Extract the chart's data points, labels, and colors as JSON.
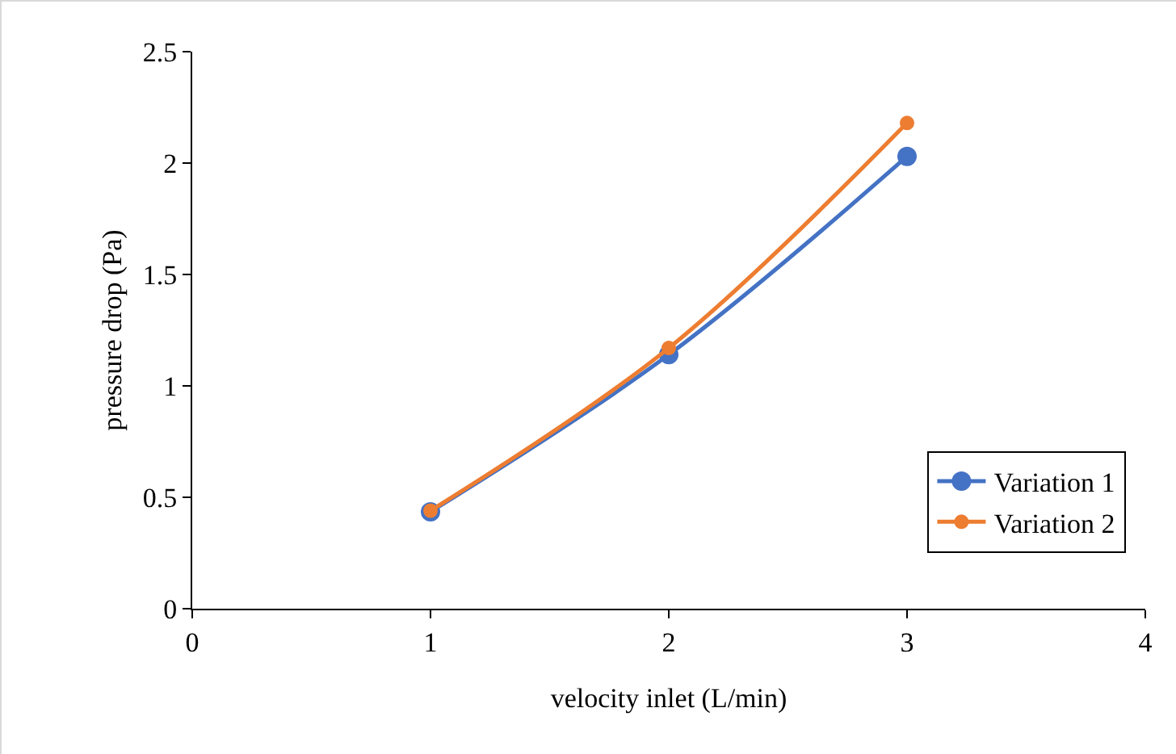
{
  "chart_data": {
    "type": "line",
    "xlabel": "velocity inlet (L/min)",
    "ylabel": "pressure drop (Pa)",
    "x": [
      1,
      2,
      3
    ],
    "series": [
      {
        "name": "Variation 1",
        "color": "#4472c4",
        "values": [
          0.435,
          1.14,
          2.03
        ]
      },
      {
        "name": "Variation 2",
        "color": "#ed7d31",
        "values": [
          0.44,
          1.17,
          2.18
        ]
      }
    ],
    "xlim": [
      0,
      4
    ],
    "xticks": [
      0,
      1,
      2,
      3,
      4
    ],
    "ylim": [
      0,
      2.5
    ],
    "yticks": [
      0,
      0.5,
      1,
      1.5,
      2,
      2.5
    ],
    "grid": false,
    "legend": "bottom right",
    "marker": "circle",
    "line_style": "solid"
  }
}
